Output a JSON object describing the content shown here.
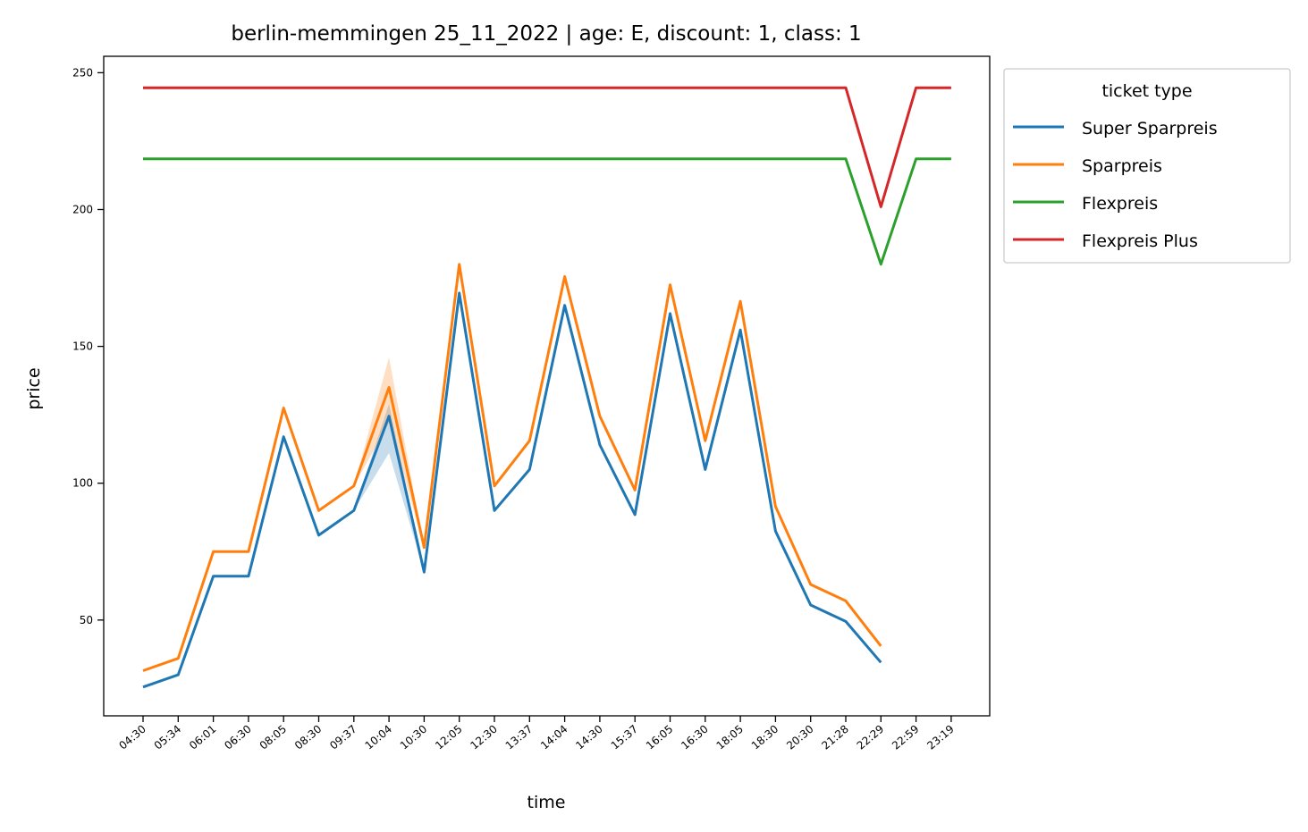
{
  "chart_data": {
    "type": "line",
    "title": "berlin-memmingen 25_11_2022 | age: E, discount: 1, class: 1",
    "xlabel": "time",
    "ylabel": "price",
    "categories": [
      "04:30",
      "05:34",
      "06:01",
      "06:30",
      "08:05",
      "08:30",
      "09:37",
      "10:04",
      "10:30",
      "12:05",
      "12:30",
      "13:37",
      "14:04",
      "14:30",
      "15:37",
      "16:05",
      "16:30",
      "18:05",
      "18:30",
      "20:30",
      "21:28",
      "22:29",
      "22:59",
      "23:19"
    ],
    "ylim": [
      15,
      256
    ],
    "yticks": [
      50,
      100,
      150,
      200,
      250
    ],
    "grid": false,
    "legend": {
      "title": "ticket type",
      "placement": "outside-top-right"
    },
    "series": [
      {
        "name": "Super Sparpreis",
        "color": "#1f77b4",
        "values": [
          25.5,
          30,
          66,
          66,
          117,
          81,
          90,
          124.5,
          67.5,
          169.5,
          90,
          105,
          165,
          114,
          88.5,
          162,
          105,
          156,
          82.5,
          55.5,
          49.5,
          34.5,
          null,
          null
        ],
        "band": {
          "category": "10:04",
          "low": 111,
          "high": 129
        }
      },
      {
        "name": "Sparpreis",
        "color": "#ff7f0e",
        "values": [
          31.5,
          36,
          75,
          75,
          127.5,
          90,
          99,
          135,
          76.5,
          180,
          99,
          115.5,
          175.5,
          124.5,
          97.5,
          172.5,
          115.5,
          166.5,
          91.5,
          63,
          57,
          40.5,
          null,
          null
        ],
        "band": {
          "category": "10:04",
          "low": 122,
          "high": 146
        }
      },
      {
        "name": "Flexpreis",
        "color": "#2ca02c",
        "values": [
          218.5,
          218.5,
          218.5,
          218.5,
          218.5,
          218.5,
          218.5,
          218.5,
          218.5,
          218.5,
          218.5,
          218.5,
          218.5,
          218.5,
          218.5,
          218.5,
          218.5,
          218.5,
          218.5,
          218.5,
          218.5,
          180,
          218.5,
          218.5
        ]
      },
      {
        "name": "Flexpreis Plus",
        "color": "#d62728",
        "values": [
          244.5,
          244.5,
          244.5,
          244.5,
          244.5,
          244.5,
          244.5,
          244.5,
          244.5,
          244.5,
          244.5,
          244.5,
          244.5,
          244.5,
          244.5,
          244.5,
          244.5,
          244.5,
          244.5,
          244.5,
          244.5,
          201,
          244.5,
          244.5
        ]
      }
    ]
  }
}
